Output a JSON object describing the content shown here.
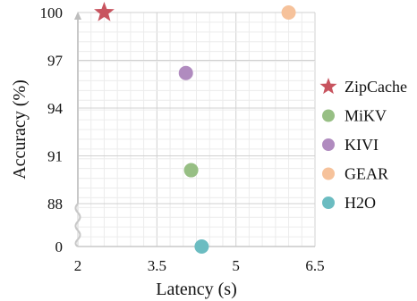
{
  "chart_data": {
    "type": "scatter",
    "xlabel": "Latency (s)",
    "ylabel": "Accuracy (%)",
    "xlim": [
      2,
      6.5
    ],
    "x_ticks": [
      "2",
      "3.5",
      "5",
      "6.5"
    ],
    "x_tick_values": [
      2,
      3.5,
      5,
      6.5
    ],
    "y_ticks": [
      "0",
      "88",
      "91",
      "94",
      "97",
      "100"
    ],
    "y_tick_values": [
      0,
      88,
      91,
      94,
      97,
      100
    ],
    "y_axis_break": "between 0 and 88",
    "grid": true,
    "legend_position": "right",
    "series": [
      {
        "name": "ZipCache",
        "marker": "star",
        "color": "#c8545f",
        "x": 2.5,
        "y": 100
      },
      {
        "name": "MiKV",
        "marker": "circle",
        "color": "#97bf84",
        "x": 4.15,
        "y": 90.1
      },
      {
        "name": "KIVI",
        "marker": "circle",
        "color": "#b08bbf",
        "x": 4.05,
        "y": 96.2
      },
      {
        "name": "GEAR",
        "marker": "circle",
        "color": "#f6c29b",
        "x": 6.0,
        "y": 100
      },
      {
        "name": "H2O",
        "marker": "circle",
        "color": "#6bbcc1",
        "x": 4.35,
        "y": 0
      }
    ]
  }
}
